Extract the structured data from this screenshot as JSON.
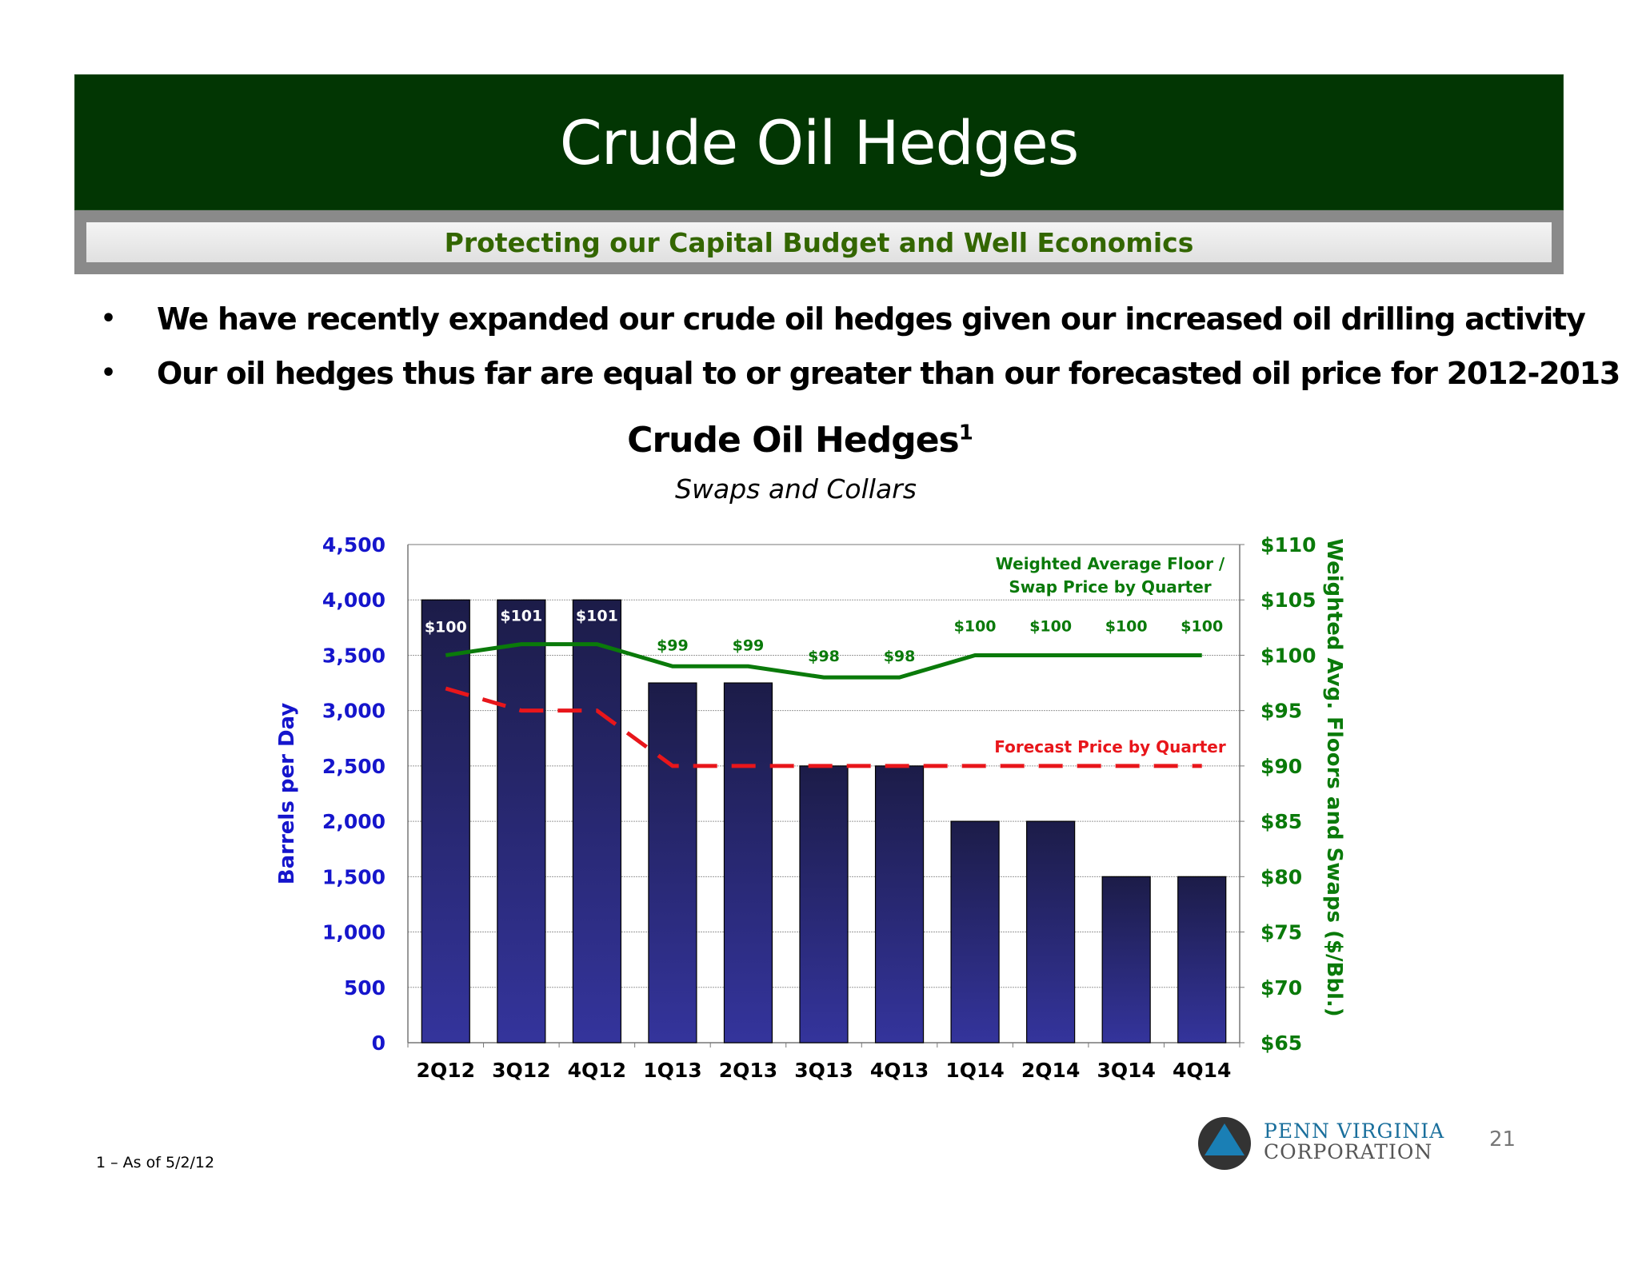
{
  "header": {
    "title": "Crude Oil Hedges",
    "subtitle": "Protecting our Capital Budget and Well Economics"
  },
  "bullets": [
    "We have recently expanded our crude oil hedges given our increased oil drilling activity",
    "Our oil hedges thus far are equal to or greater than our forecasted oil price for 2012-2013"
  ],
  "chart_title": {
    "main": "Crude Oil Hedges",
    "superscript": "1",
    "subtitle": "Swaps and Collars"
  },
  "chart_data": {
    "type": "bar",
    "categories": [
      "2Q12",
      "3Q12",
      "4Q12",
      "1Q13",
      "2Q13",
      "3Q13",
      "4Q13",
      "1Q14",
      "2Q14",
      "3Q14",
      "4Q14"
    ],
    "series": [
      {
        "axis": "left",
        "values": [
          4000,
          4000,
          4000,
          3250,
          3250,
          2500,
          2500,
          2000,
          2000,
          1500,
          1500
        ],
        "color": "#2c2c80"
      },
      {
        "name": "Weighted Average Floor / Swap Price by Quarter",
        "axis": "right",
        "type": "line",
        "values": [
          100,
          101,
          101,
          99,
          99,
          98,
          98,
          100,
          100,
          100,
          100
        ],
        "labels": [
          "$100",
          "$101",
          "$101",
          "$99",
          "$99",
          "$98",
          "$98",
          "$100",
          "$100",
          "$100",
          "$100"
        ],
        "color": "#0a7a0a"
      },
      {
        "name": "Forecast Price by Quarter",
        "axis": "right",
        "type": "line",
        "style": "dashed",
        "values": [
          97,
          95,
          95,
          90,
          90,
          90,
          90,
          90,
          90,
          90,
          90
        ],
        "color": "#e8161b"
      }
    ],
    "ylabel": "Barrels per Day",
    "y2label": "Weighted Avg. Floors and Swaps  ($/Bbl.)",
    "ylim": [
      0,
      4500
    ],
    "y2lim": [
      65,
      110
    ],
    "yticks": [
      "0",
      "500",
      "1,000",
      "1,500",
      "2,000",
      "2,500",
      "3,000",
      "3,500",
      "4,000",
      "4,500"
    ],
    "y2ticks": [
      "$65",
      "$70",
      "$75",
      "$80",
      "$85",
      "$90",
      "$95",
      "$100",
      "$105",
      "$110"
    ],
    "annotations": {
      "floor_label_line1": "Weighted Average Floor /",
      "floor_label_line2": "Swap Price by Quarter",
      "forecast_label": "Forecast Price by Quarter"
    },
    "colors": {
      "left_axis": "#1515cc",
      "right_axis": "#0a7a0a",
      "bar": "#2c2c80"
    },
    "grid": true
  },
  "footer": {
    "footnote": "1 – As of 5/2/12",
    "company_line1": "PENN VIRGINIA",
    "company_line2": "CORPORATION",
    "page_number": "21"
  }
}
